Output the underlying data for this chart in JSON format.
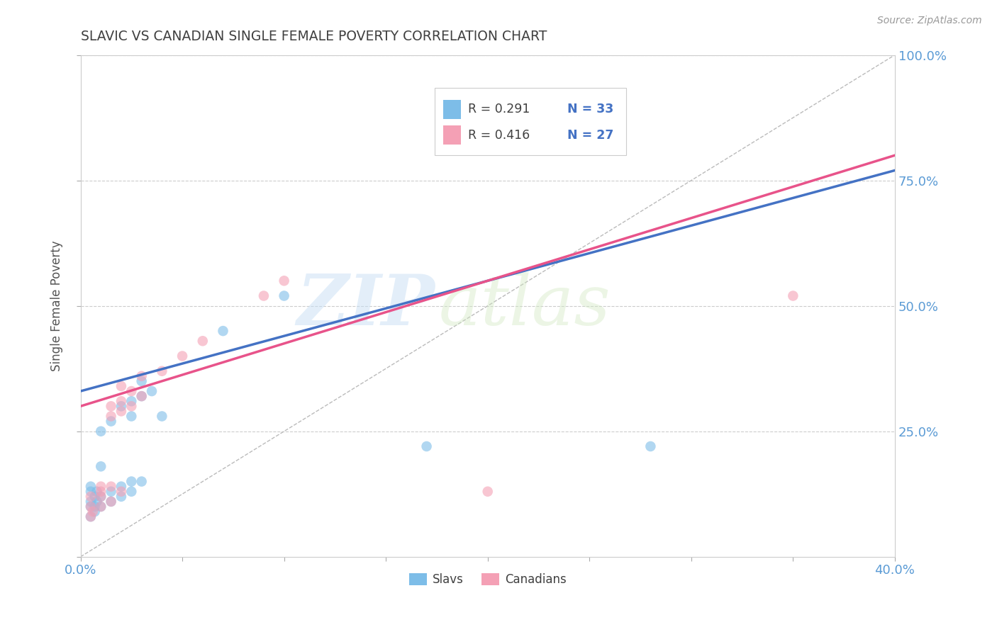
{
  "title": "SLAVIC VS CANADIAN SINGLE FEMALE POVERTY CORRELATION CHART",
  "source": "Source: ZipAtlas.com",
  "ylabel": "Single Female Poverty",
  "xlim": [
    0.0,
    0.4
  ],
  "ylim": [
    0.0,
    1.0
  ],
  "xticks": [
    0.0,
    0.05,
    0.1,
    0.15,
    0.2,
    0.25,
    0.3,
    0.35,
    0.4
  ],
  "yticks": [
    0.0,
    0.25,
    0.5,
    0.75,
    1.0
  ],
  "legend_r1": "R = 0.291",
  "legend_n1": "N = 33",
  "legend_r2": "R = 0.416",
  "legend_n2": "N = 27",
  "slavs_color": "#7dbde8",
  "canadians_color": "#f4a0b5",
  "slavs_scatter": [
    [
      0.005,
      0.08
    ],
    [
      0.005,
      0.1
    ],
    [
      0.005,
      0.11
    ],
    [
      0.005,
      0.13
    ],
    [
      0.005,
      0.14
    ],
    [
      0.007,
      0.09
    ],
    [
      0.007,
      0.1
    ],
    [
      0.007,
      0.12
    ],
    [
      0.008,
      0.11
    ],
    [
      0.008,
      0.13
    ],
    [
      0.01,
      0.1
    ],
    [
      0.01,
      0.12
    ],
    [
      0.01,
      0.18
    ],
    [
      0.01,
      0.25
    ],
    [
      0.015,
      0.11
    ],
    [
      0.015,
      0.13
    ],
    [
      0.015,
      0.27
    ],
    [
      0.02,
      0.12
    ],
    [
      0.02,
      0.14
    ],
    [
      0.02,
      0.3
    ],
    [
      0.025,
      0.13
    ],
    [
      0.025,
      0.15
    ],
    [
      0.025,
      0.28
    ],
    [
      0.025,
      0.31
    ],
    [
      0.03,
      0.15
    ],
    [
      0.03,
      0.32
    ],
    [
      0.03,
      0.35
    ],
    [
      0.035,
      0.33
    ],
    [
      0.04,
      0.28
    ],
    [
      0.07,
      0.45
    ],
    [
      0.1,
      0.52
    ],
    [
      0.17,
      0.22
    ],
    [
      0.28,
      0.22
    ]
  ],
  "canadians_scatter": [
    [
      0.005,
      0.08
    ],
    [
      0.005,
      0.1
    ],
    [
      0.005,
      0.12
    ],
    [
      0.006,
      0.09
    ],
    [
      0.01,
      0.1
    ],
    [
      0.01,
      0.12
    ],
    [
      0.01,
      0.13
    ],
    [
      0.01,
      0.14
    ],
    [
      0.015,
      0.11
    ],
    [
      0.015,
      0.14
    ],
    [
      0.015,
      0.28
    ],
    [
      0.015,
      0.3
    ],
    [
      0.02,
      0.13
    ],
    [
      0.02,
      0.29
    ],
    [
      0.02,
      0.31
    ],
    [
      0.02,
      0.34
    ],
    [
      0.025,
      0.3
    ],
    [
      0.025,
      0.33
    ],
    [
      0.03,
      0.32
    ],
    [
      0.03,
      0.36
    ],
    [
      0.04,
      0.37
    ],
    [
      0.05,
      0.4
    ],
    [
      0.06,
      0.43
    ],
    [
      0.09,
      0.52
    ],
    [
      0.1,
      0.55
    ],
    [
      0.2,
      0.13
    ],
    [
      0.35,
      0.52
    ]
  ],
  "slavs_line_x": [
    0.0,
    0.4
  ],
  "slavs_line_y": [
    0.33,
    0.77
  ],
  "canadians_line_x": [
    0.0,
    0.4
  ],
  "canadians_line_y": [
    0.3,
    0.8
  ],
  "diagonal_line_x": [
    0.0,
    0.4
  ],
  "diagonal_line_y": [
    0.0,
    1.0
  ],
  "watermark_line1": "ZIP",
  "watermark_line2": "atlas",
  "background_color": "#ffffff",
  "grid_color": "#cccccc",
  "tick_color": "#5b9bd5",
  "title_color": "#404040",
  "axis_label_color": "#555555"
}
